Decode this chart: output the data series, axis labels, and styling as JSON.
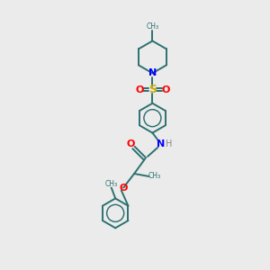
{
  "background_color": "#ebebeb",
  "bond_color": "#2d7070",
  "n_color": "#0000ff",
  "o_color": "#ff0000",
  "s_color": "#ccaa00",
  "h_color": "#888888",
  "line_width": 1.4,
  "figsize": [
    3.0,
    3.0
  ],
  "dpi": 100,
  "xlim": [
    0,
    10
  ],
  "ylim": [
    0,
    10
  ]
}
